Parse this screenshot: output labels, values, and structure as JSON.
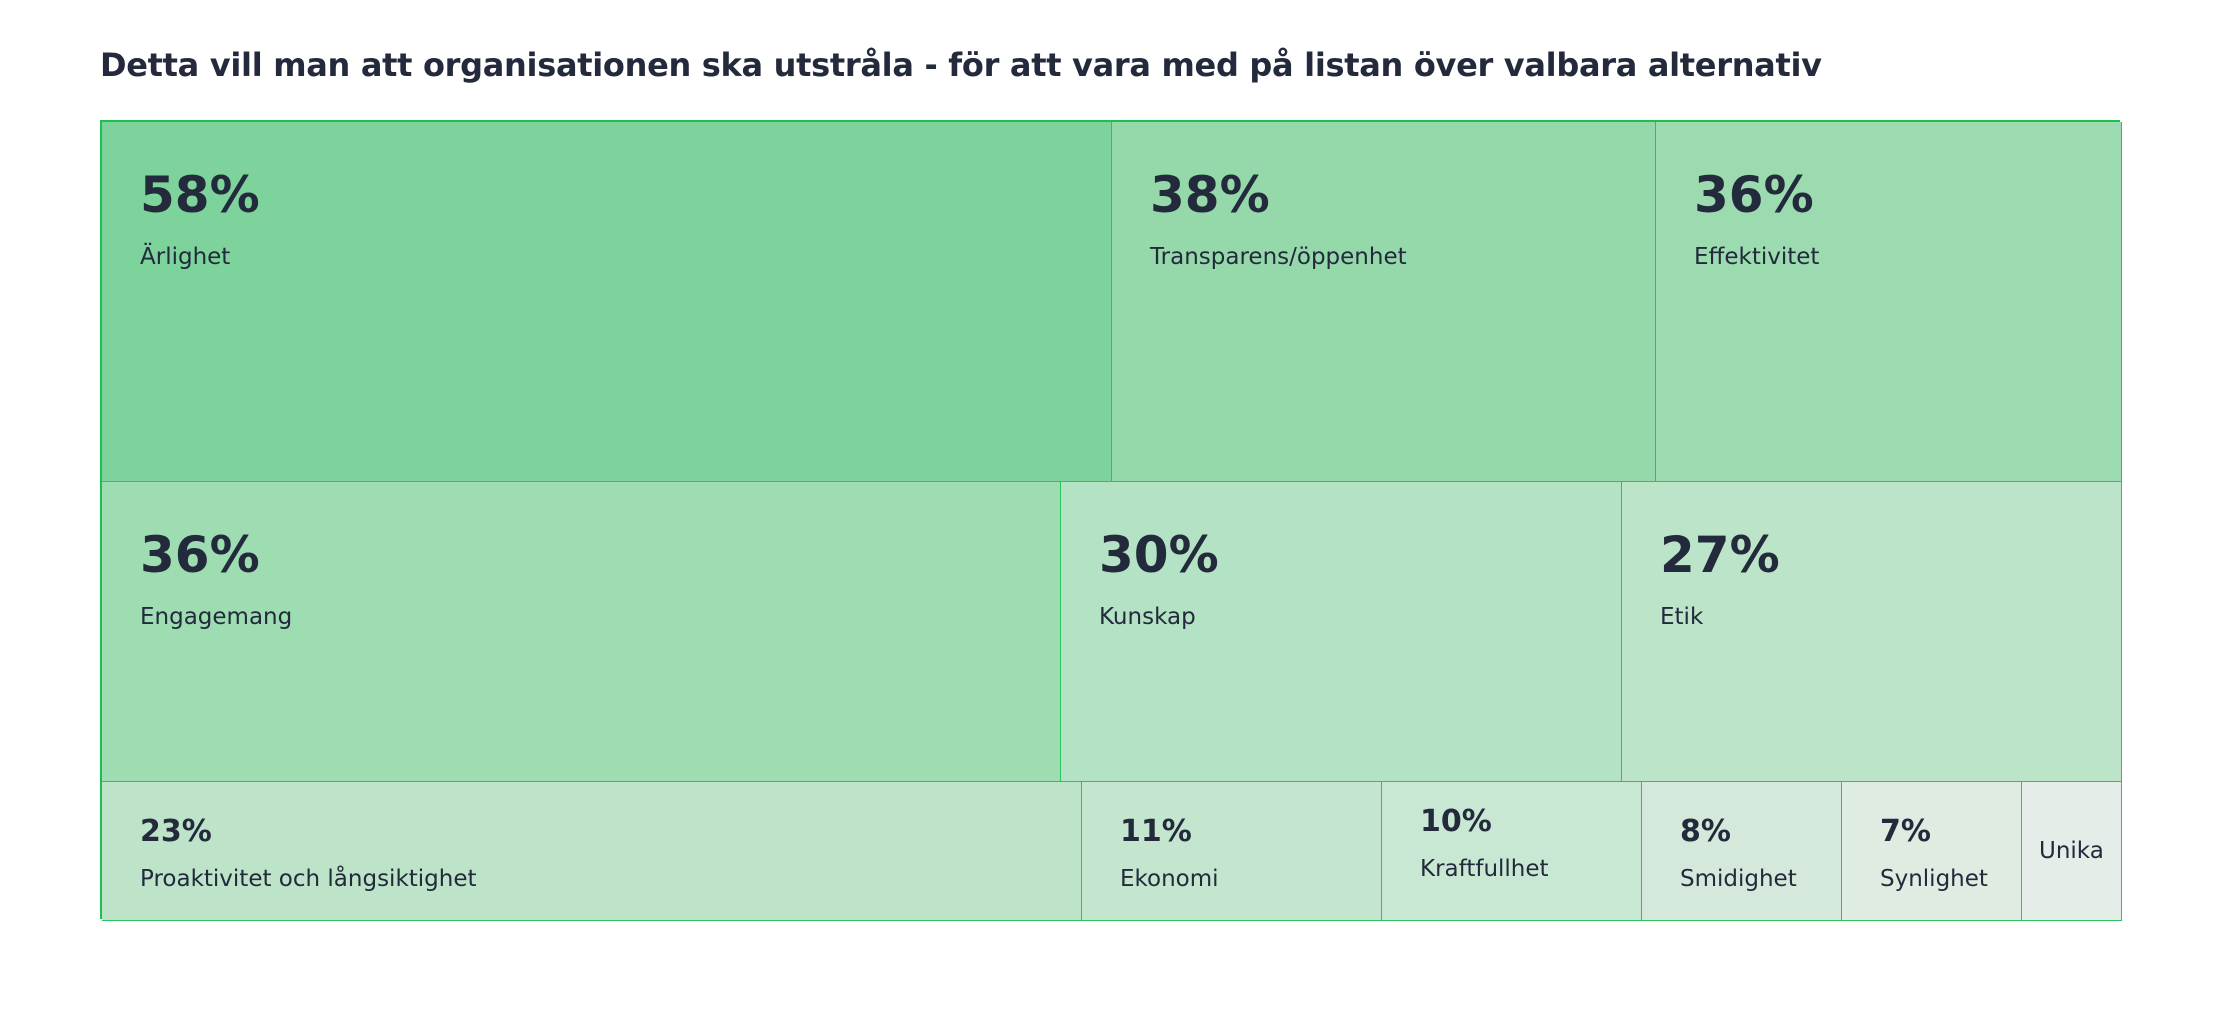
{
  "chart_data": {
    "type": "treemap",
    "title": "Detta vill man att organisationen ska utstråla - för att vara med på listan över valbara alternativ",
    "items": [
      {
        "label": "Ärlighet",
        "value": 58,
        "display": "58%",
        "color": "#7dd39b"
      },
      {
        "label": "Transparens/öppenhet",
        "value": 38,
        "display": "38%",
        "color": "#95d9ab"
      },
      {
        "label": "Effektivitet",
        "value": 36,
        "display": "36%",
        "color": "#9cdbb0"
      },
      {
        "label": "Engagemang",
        "value": 36,
        "display": "36%",
        "color": "#9edcb1"
      },
      {
        "label": "Kunskap",
        "value": 30,
        "display": "30%",
        "color": "#b4e2c4"
      },
      {
        "label": "Etik",
        "value": 27,
        "display": "27%",
        "color": "#bce4c9"
      },
      {
        "label": "Proaktivitet och långsiktighet",
        "value": 23,
        "display": "23%",
        "color": "#bde3c9"
      },
      {
        "label": "Ekonomi",
        "value": 11,
        "display": "11%",
        "color": "#c4e6cf"
      },
      {
        "label": "Kraftfullhet",
        "value": 10,
        "display": "10%",
        "color": "#c9e8d3"
      },
      {
        "label": "Smidighet",
        "value": 8,
        "display": "8%",
        "color": "#d4e9dc"
      },
      {
        "label": "Synlighet",
        "value": 7,
        "display": "7%",
        "color": "#deece2"
      },
      {
        "label": "Unika",
        "value": null,
        "display": "",
        "color": "#e4ede7"
      }
    ]
  }
}
